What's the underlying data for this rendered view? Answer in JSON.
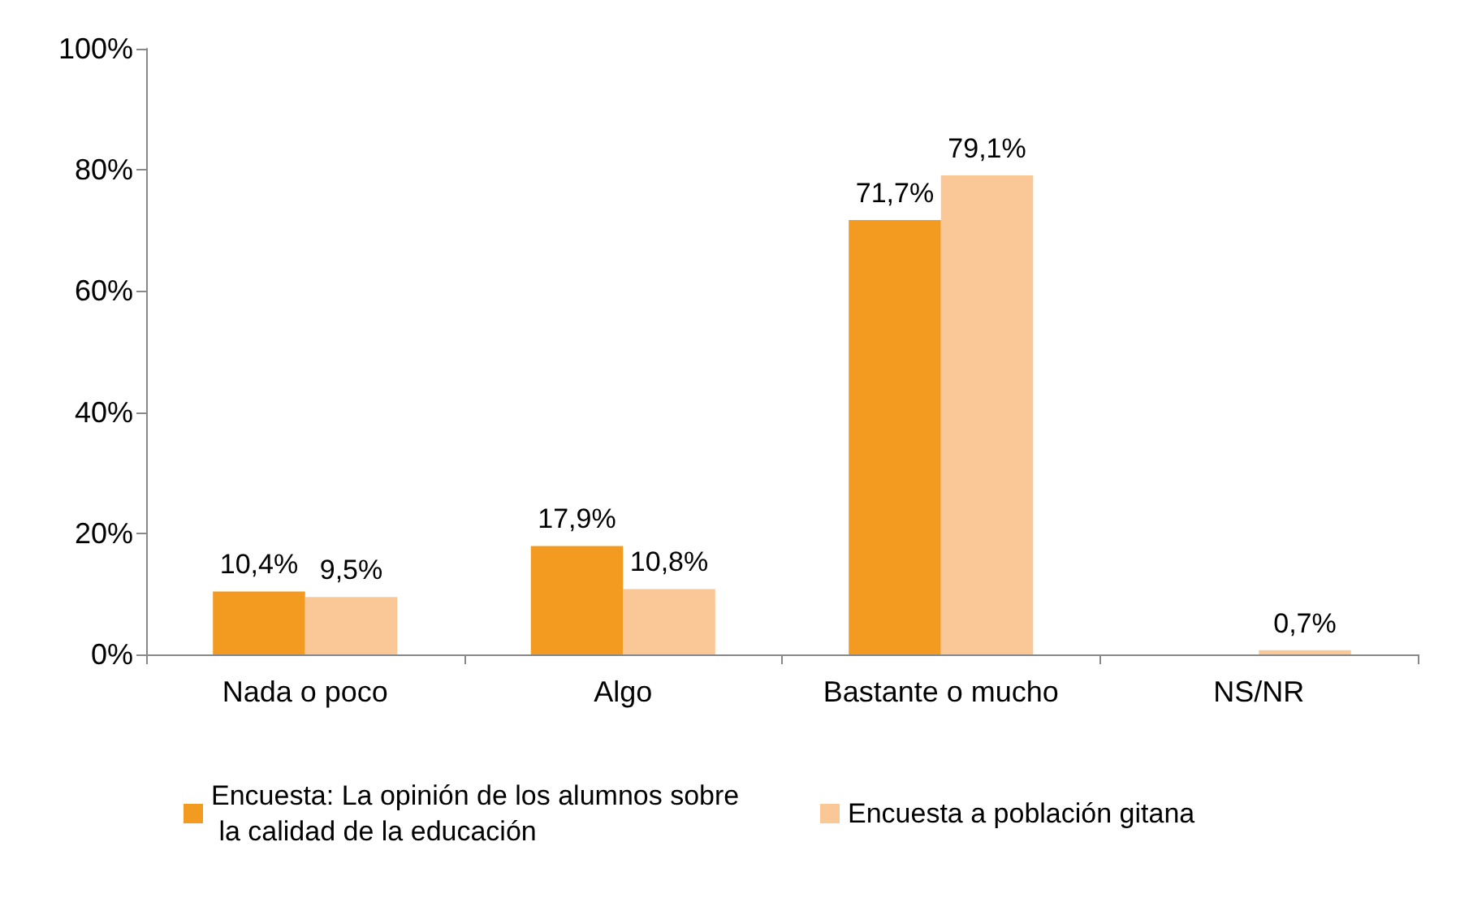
{
  "chart_data": {
    "type": "bar",
    "categories": [
      "Nada o poco",
      "Algo",
      "Bastante o mucho",
      "NS/NR"
    ],
    "series": [
      {
        "name": "Encuesta: La opinión de los alumnos sobre la calidad de la educación",
        "color": "#f39a21",
        "values": [
          10.4,
          17.9,
          71.7,
          null
        ],
        "value_labels": [
          "10,4%",
          "17,9%",
          "71,7%",
          null
        ]
      },
      {
        "name": "Encuesta a población gitana",
        "color": "#fac896",
        "values": [
          9.5,
          10.8,
          79.1,
          0.7
        ],
        "value_labels": [
          "9,5%",
          "10,8%",
          "79,1%",
          "0,7%"
        ]
      }
    ],
    "ylim": [
      0,
      100
    ],
    "yticks": [
      {
        "value": 0,
        "label": "0%"
      },
      {
        "value": 20,
        "label": "20%"
      },
      {
        "value": 40,
        "label": "40%"
      },
      {
        "value": 60,
        "label": "60%"
      },
      {
        "value": 80,
        "label": "80%"
      },
      {
        "value": 100,
        "label": "100%"
      }
    ],
    "grid": false,
    "legend": "bottom"
  }
}
